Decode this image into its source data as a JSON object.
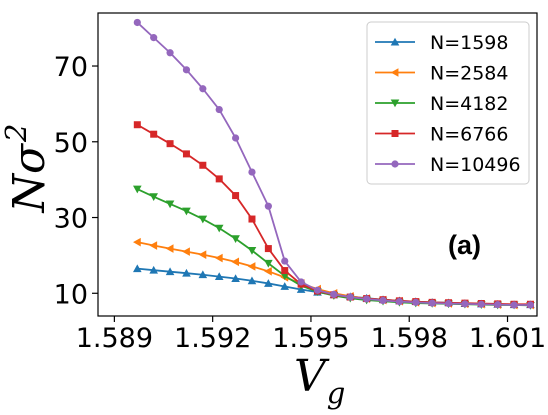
{
  "chart_data": {
    "type": "line",
    "xlabel": "V",
    "xlabel_sub": "g",
    "ylabel": "Nσ",
    "ylabel_sup": "2",
    "annotation": "(a)",
    "xlim": [
      1.5885,
      1.6019
    ],
    "ylim": [
      4,
      84
    ],
    "x_ticks": [
      1.589,
      1.592,
      1.595,
      1.598,
      1.601
    ],
    "x_tick_labels": [
      "1.589",
      "1.592",
      "1.595",
      "1.598",
      "1.601"
    ],
    "y_ticks": [
      10,
      30,
      50,
      70
    ],
    "y_tick_labels": [
      "10",
      "30",
      "50",
      "70"
    ],
    "legend_position": "top-right",
    "x": [
      1.5897,
      1.5902,
      1.5907,
      1.5912,
      1.5917,
      1.5922,
      1.5927,
      1.5932,
      1.5937,
      1.5942,
      1.5947,
      1.5952,
      1.5957,
      1.5962,
      1.5967,
      1.5972,
      1.5977,
      1.5982,
      1.5987,
      1.5992,
      1.5997,
      1.6002,
      1.6007,
      1.6012,
      1.6017
    ],
    "series": [
      {
        "name": "N=1598",
        "color": "#1f77b4",
        "marker": "triangle-up",
        "values": [
          16.5,
          16.1,
          15.7,
          15.3,
          14.9,
          14.4,
          13.9,
          13.3,
          12.6,
          11.8,
          11.0,
          10.3,
          9.6,
          9.1,
          8.7,
          8.3,
          8.0,
          7.8,
          7.6,
          7.5,
          7.3,
          7.2,
          7.1,
          7.0,
          7.0
        ]
      },
      {
        "name": "N=2584",
        "color": "#ff7f0e",
        "marker": "triangle-left",
        "values": [
          23.5,
          22.6,
          21.8,
          21.0,
          20.2,
          19.3,
          18.3,
          17.1,
          15.8,
          14.2,
          12.6,
          11.1,
          10.0,
          9.2,
          8.6,
          8.2,
          7.9,
          7.6,
          7.4,
          7.3,
          7.2,
          7.1,
          7.0,
          6.9,
          6.9
        ]
      },
      {
        "name": "N=4182",
        "color": "#2ca02c",
        "marker": "triangle-down",
        "values": [
          37.5,
          35.5,
          33.6,
          31.7,
          29.6,
          27.2,
          24.4,
          21.3,
          17.9,
          14.6,
          12.0,
          10.4,
          9.4,
          8.7,
          8.2,
          7.9,
          7.6,
          7.4,
          7.3,
          7.2,
          7.1,
          7.0,
          6.9,
          6.9,
          6.8
        ]
      },
      {
        "name": "N=6766",
        "color": "#d62728",
        "marker": "square",
        "values": [
          54.5,
          52.0,
          49.5,
          46.8,
          43.8,
          40.2,
          35.8,
          29.6,
          21.8,
          16.0,
          12.4,
          10.6,
          9.6,
          9.0,
          8.6,
          8.3,
          8.0,
          7.8,
          7.6,
          7.5,
          7.4,
          7.3,
          7.2,
          7.1,
          7.1
        ]
      },
      {
        "name": "N=10496",
        "color": "#9467bd",
        "marker": "circle",
        "values": [
          81.5,
          77.5,
          73.5,
          69.0,
          64.0,
          58.5,
          51.0,
          42.0,
          33.0,
          18.5,
          13.0,
          10.8,
          9.7,
          9.0,
          8.5,
          8.1,
          7.8,
          7.6,
          7.4,
          7.3,
          7.2,
          7.1,
          7.0,
          6.9,
          6.9
        ]
      }
    ]
  }
}
